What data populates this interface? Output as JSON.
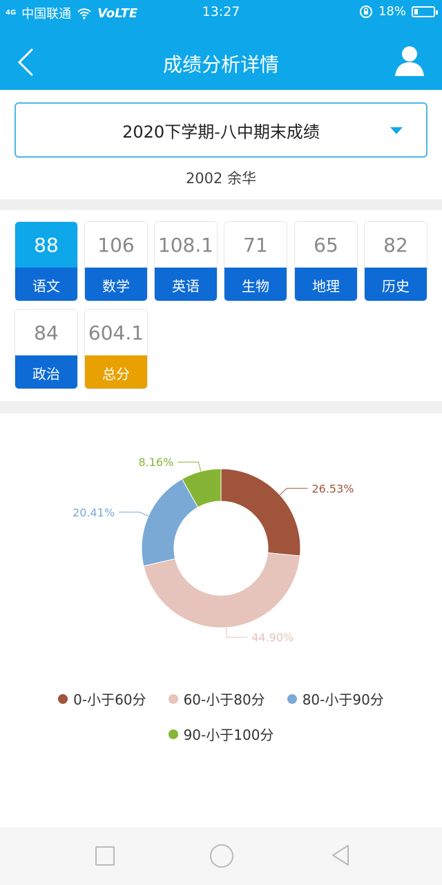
{
  "status_bar": {
    "signal": "4G",
    "carrier": "中国联通",
    "volte": "VoLTE",
    "time": "13:27",
    "battery": "18%"
  },
  "header": {
    "title": "成绩分析详情"
  },
  "exam_select": {
    "value": "2020下学期-八中期末成绩"
  },
  "student": {
    "label": "2002 余华"
  },
  "scores": [
    {
      "score": "88",
      "subject": "语文"
    },
    {
      "score": "106",
      "subject": "数学"
    },
    {
      "score": "108.1",
      "subject": "英语"
    },
    {
      "score": "71",
      "subject": "生物"
    },
    {
      "score": "65",
      "subject": "地理"
    },
    {
      "score": "82",
      "subject": "历史"
    },
    {
      "score": "84",
      "subject": "政治"
    },
    {
      "score": "604.1",
      "subject": "总分"
    }
  ],
  "colors": {
    "header": "#0ea7ea",
    "subject_bar": "#0e6bd6",
    "total_bar": "#e8a100",
    "active_score": "#0ea7ea"
  },
  "chart_data": {
    "type": "pie",
    "labels": [
      "0-小于60分",
      "60-小于80分",
      "80-小于90分",
      "90-小于100分"
    ],
    "values": [
      26.53,
      44.9,
      20.41,
      8.16
    ],
    "value_labels": [
      "26.53%",
      "44.90%",
      "20.41%",
      "8.16%"
    ],
    "colors": [
      "#a0543b",
      "#e6c4bb",
      "#7aa9d6",
      "#86b535"
    ],
    "donut": true,
    "legend_position": "bottom"
  },
  "nav": {
    "square_icon": "recent-apps-icon",
    "circle_icon": "home-icon",
    "back_icon": "back-triangle-icon"
  }
}
